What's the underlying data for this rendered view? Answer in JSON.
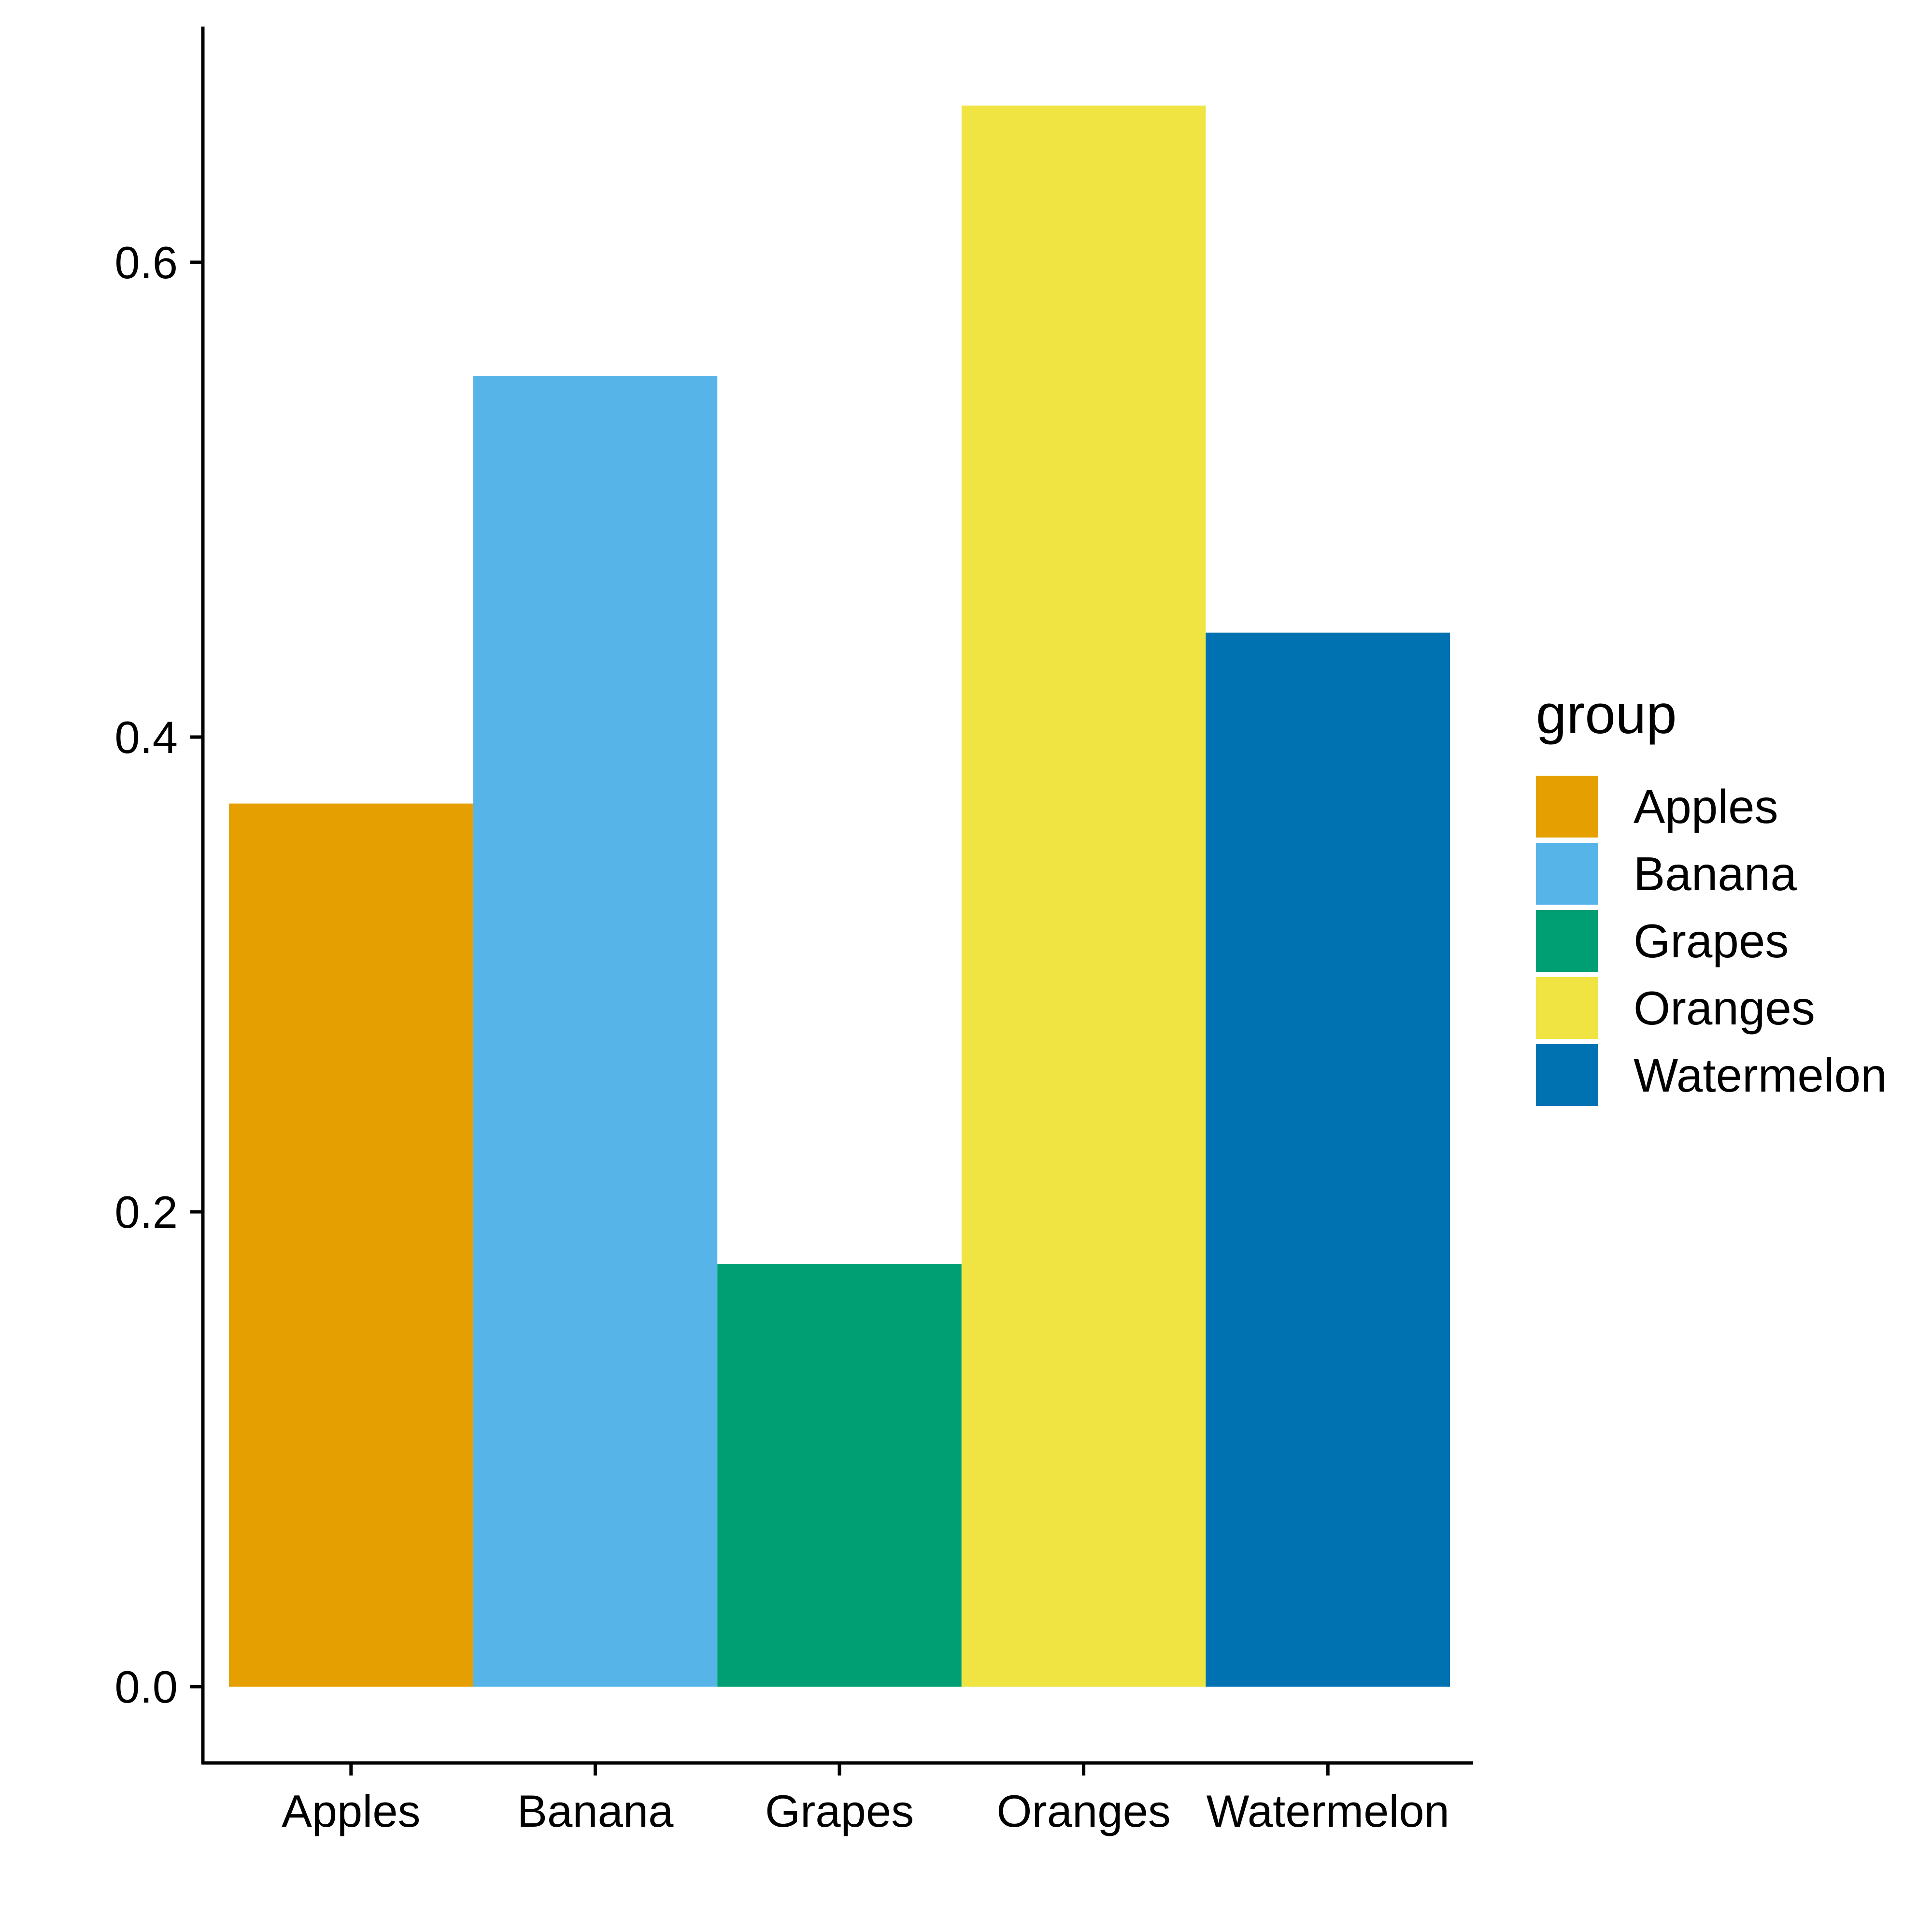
{
  "chart_data": {
    "type": "bar",
    "categories": [
      "Apples",
      "Banana",
      "Grapes",
      "Oranges",
      "Watermelon"
    ],
    "values": [
      0.372,
      0.552,
      0.178,
      0.666,
      0.444
    ],
    "colors": [
      "#E69F00",
      "#56B4E9",
      "#009E73",
      "#F0E442",
      "#0072B2"
    ],
    "title": "",
    "xlabel": "",
    "ylabel": "",
    "ylim": [
      -0.033,
      0.7
    ],
    "yticks": [
      0.0,
      0.2,
      0.4,
      0.6
    ],
    "ytick_labels": [
      "0.0",
      "0.2",
      "0.4",
      "0.6"
    ],
    "grid": false,
    "legend": {
      "title": "group",
      "position": "right",
      "entries": [
        "Apples",
        "Banana",
        "Grapes",
        "Oranges",
        "Watermelon"
      ]
    }
  }
}
